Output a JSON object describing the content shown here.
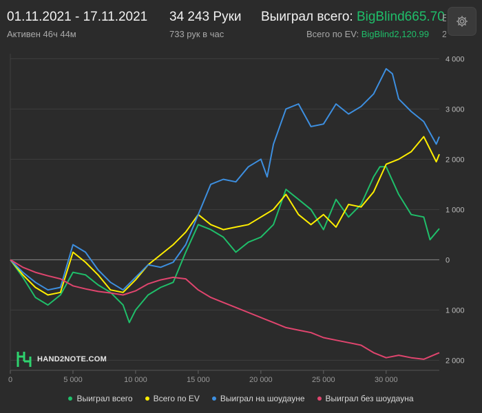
{
  "header": {
    "date_range": "01.11.2021 - 17.11.2021",
    "hands": "34 243 Руки",
    "won_label": "Выиграл всего:",
    "won_value": "BigBlind665.70",
    "active": "Активен 46ч 44м",
    "hands_per_hour": "733 рук в час",
    "ev_label": "Всего по EV:",
    "ev_value": "BigBlind2,120.99",
    "cut_top": "E",
    "cut_bottom": "2"
  },
  "icons": {
    "settings": "gear-icon",
    "logo": "hand2note-logo-icon"
  },
  "brand": "HAND2NOTE.COM",
  "colors": {
    "background": "#2b2b2b",
    "won_total": "#1fbf6a",
    "won_ev": "#ffee00",
    "won_showdown": "#3d8fe0",
    "won_non_showdown": "#e0456e"
  },
  "chart_data": {
    "type": "line",
    "xlabel": "",
    "ylabel": "",
    "x_ticks": [
      0,
      5000,
      10000,
      15000,
      20000,
      25000,
      30000
    ],
    "x_tick_labels": [
      "0",
      "5 000",
      "10 000",
      "15 000",
      "20 000",
      "25 000",
      "30 000"
    ],
    "y_ticks": [
      4000,
      3000,
      2000,
      1000,
      0,
      -1000,
      -2000
    ],
    "y_tick_labels": [
      "4 000",
      "3 000",
      "2 000",
      "1 000",
      "0",
      "1 000",
      "2 000"
    ],
    "xlim": [
      0,
      34243
    ],
    "ylim": [
      -2200,
      4100
    ],
    "grid": true,
    "legend_position": "bottom",
    "series": [
      {
        "name": "Выиграл всего",
        "color": "#1fbf6a",
        "x": [
          0,
          1000,
          2000,
          3000,
          4000,
          5000,
          6000,
          7000,
          8000,
          9000,
          9500,
          10000,
          11000,
          12000,
          13000,
          14000,
          15000,
          16000,
          17000,
          18000,
          19000,
          20000,
          21000,
          22000,
          23000,
          24000,
          25000,
          26000,
          27000,
          28000,
          29000,
          29500,
          30000,
          31000,
          32000,
          33000,
          33500,
          34243
        ],
        "y": [
          0,
          -350,
          -750,
          -900,
          -700,
          -250,
          -300,
          -500,
          -650,
          -900,
          -1250,
          -1000,
          -700,
          -550,
          -450,
          150,
          700,
          600,
          450,
          150,
          350,
          450,
          700,
          1400,
          1200,
          1000,
          600,
          1200,
          850,
          1100,
          1650,
          1850,
          1850,
          1300,
          900,
          850,
          400,
          620
        ]
      },
      {
        "name": "Всего по EV",
        "color": "#ffee00",
        "x": [
          0,
          1000,
          2000,
          3000,
          4000,
          5000,
          6000,
          7000,
          8000,
          9000,
          10000,
          11000,
          12000,
          13000,
          14000,
          15000,
          16000,
          17000,
          18000,
          19000,
          20000,
          21000,
          22000,
          23000,
          24000,
          25000,
          26000,
          27000,
          28000,
          29000,
          30000,
          31000,
          32000,
          33000,
          34000,
          34243
        ],
        "y": [
          0,
          -300,
          -550,
          -700,
          -650,
          150,
          -50,
          -300,
          -600,
          -650,
          -400,
          -100,
          100,
          300,
          550,
          900,
          700,
          600,
          650,
          700,
          850,
          1000,
          1300,
          900,
          700,
          900,
          650,
          1100,
          1050,
          1350,
          1900,
          2000,
          2150,
          2450,
          1950,
          2100
        ]
      },
      {
        "name": "Выиграл на шоудауне",
        "color": "#3d8fe0",
        "x": [
          0,
          1000,
          2000,
          3000,
          4000,
          5000,
          6000,
          7000,
          8000,
          9000,
          10000,
          11000,
          12000,
          13000,
          14000,
          15000,
          16000,
          17000,
          18000,
          19000,
          20000,
          20500,
          21000,
          22000,
          23000,
          24000,
          25000,
          26000,
          27000,
          28000,
          29000,
          30000,
          30500,
          31000,
          32000,
          33000,
          34000,
          34243
        ],
        "y": [
          0,
          -250,
          -450,
          -600,
          -550,
          300,
          150,
          -200,
          -450,
          -600,
          -350,
          -100,
          -150,
          -50,
          300,
          900,
          1500,
          1600,
          1550,
          1850,
          2000,
          1650,
          2300,
          3000,
          3100,
          2650,
          2700,
          3100,
          2900,
          3050,
          3300,
          3800,
          3700,
          3200,
          2950,
          2750,
          2300,
          2450
        ]
      },
      {
        "name": "Выиграл без шоудауна",
        "color": "#e0456e",
        "x": [
          0,
          1000,
          2000,
          3000,
          4000,
          5000,
          6000,
          7000,
          8000,
          9000,
          10000,
          11000,
          12000,
          13000,
          14000,
          15000,
          16000,
          17000,
          18000,
          19000,
          20000,
          21000,
          22000,
          23000,
          24000,
          25000,
          26000,
          27000,
          28000,
          29000,
          30000,
          31000,
          32000,
          33000,
          34243
        ],
        "y": [
          0,
          -150,
          -250,
          -320,
          -380,
          -520,
          -580,
          -630,
          -660,
          -700,
          -620,
          -480,
          -400,
          -350,
          -380,
          -600,
          -750,
          -850,
          -950,
          -1050,
          -1150,
          -1250,
          -1350,
          -1400,
          -1450,
          -1550,
          -1600,
          -1650,
          -1700,
          -1850,
          -1950,
          -1900,
          -1950,
          -1980,
          -1850
        ]
      }
    ]
  }
}
